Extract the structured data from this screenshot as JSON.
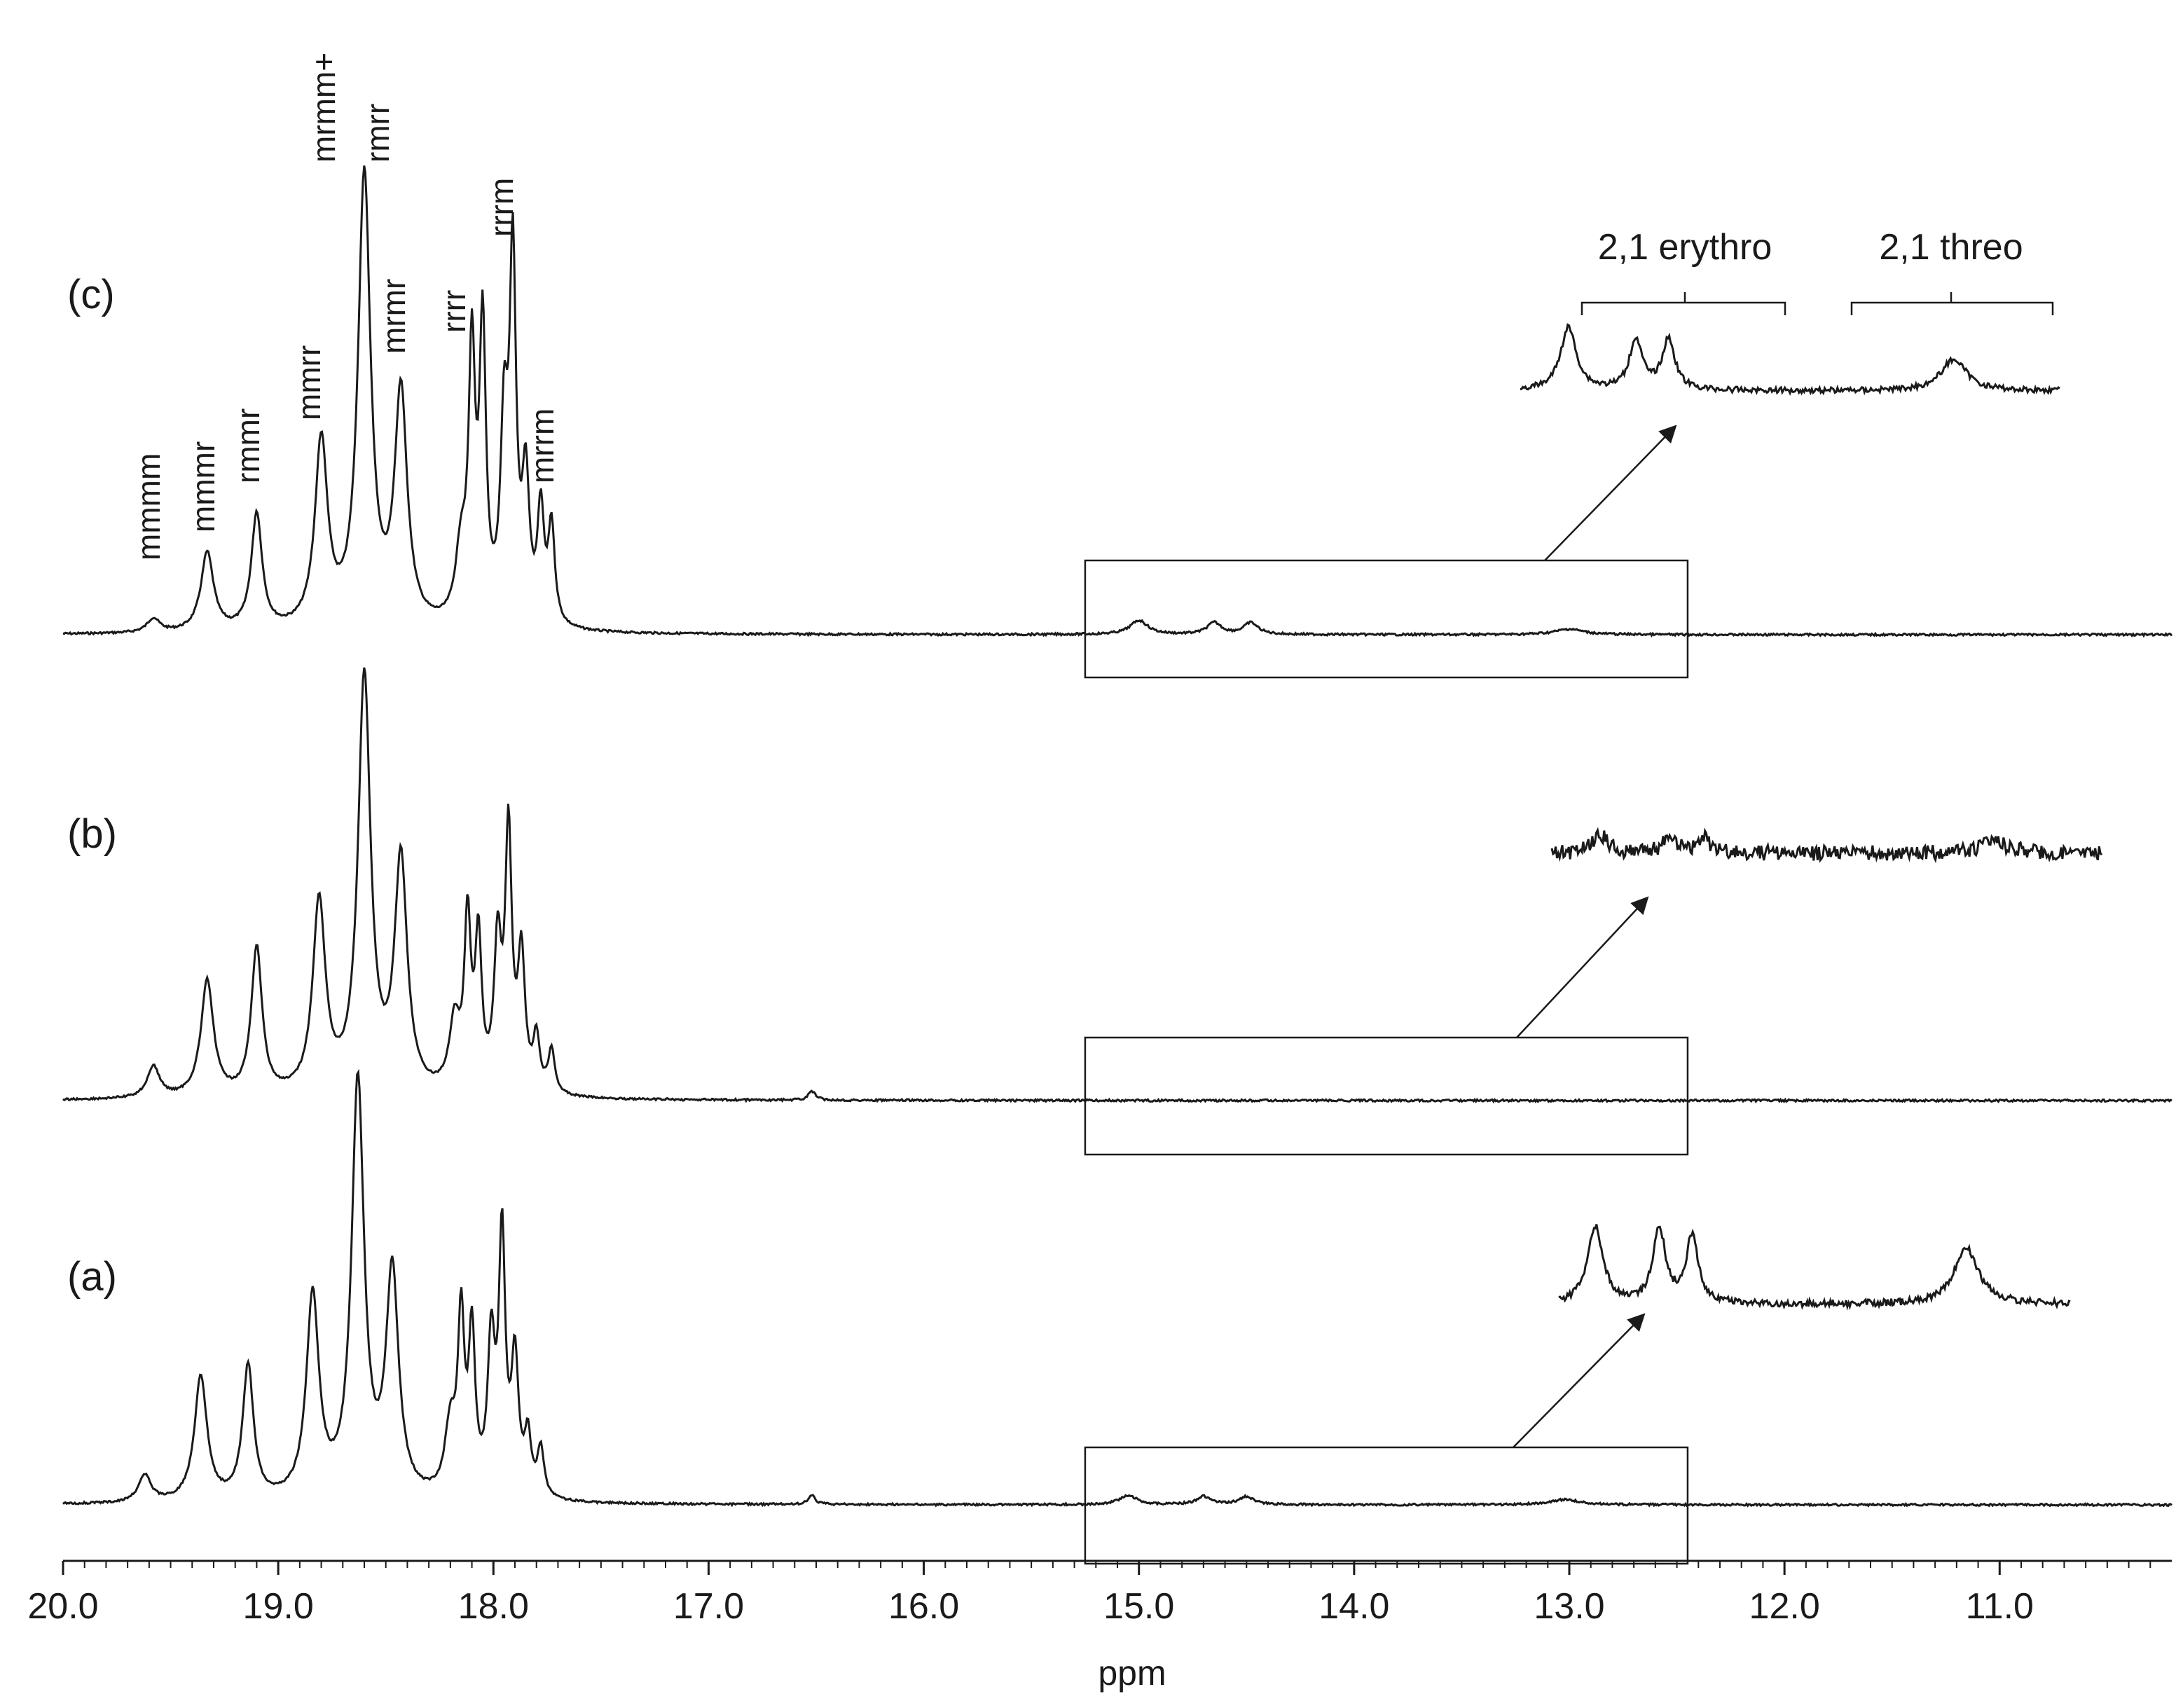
{
  "chart_data": {
    "type": "line",
    "title": "",
    "xlabel": "ppm",
    "ylabel": "",
    "xlim": [
      20.0,
      10.2
    ],
    "x_reversed": true,
    "x_ticks": [
      "20.0",
      "19.0",
      "18.0",
      "17.0",
      "16.0",
      "15.0",
      "14.0",
      "13.0",
      "12.0",
      "11.0"
    ],
    "grid": false,
    "legend": "none",
    "line_color": "#1a1a1a",
    "series": [
      {
        "name": "(c)",
        "peaks": [
          {
            "ppm": 19.58,
            "h": 0.03,
            "w": 0.035
          },
          {
            "ppm": 19.33,
            "h": 0.17,
            "w": 0.035
          },
          {
            "ppm": 19.1,
            "h": 0.25,
            "w": 0.03
          },
          {
            "ppm": 18.8,
            "h": 0.4,
            "w": 0.035
          },
          {
            "ppm": 18.6,
            "h": 0.97,
            "w": 0.035
          },
          {
            "ppm": 18.43,
            "h": 0.5,
            "w": 0.035
          },
          {
            "ppm": 18.15,
            "h": 0.15,
            "w": 0.03
          },
          {
            "ppm": 18.1,
            "h": 0.56,
            "w": 0.018
          },
          {
            "ppm": 18.05,
            "h": 0.62,
            "w": 0.018
          },
          {
            "ppm": 17.95,
            "h": 0.4,
            "w": 0.02
          },
          {
            "ppm": 17.91,
            "h": 0.77,
            "w": 0.018
          },
          {
            "ppm": 17.85,
            "h": 0.3,
            "w": 0.02
          },
          {
            "ppm": 17.78,
            "h": 0.24,
            "w": 0.018
          },
          {
            "ppm": 17.73,
            "h": 0.21,
            "w": 0.018
          },
          {
            "ppm": 15.0,
            "h": 0.03,
            "w": 0.05
          },
          {
            "ppm": 14.65,
            "h": 0.025,
            "w": 0.04
          },
          {
            "ppm": 14.48,
            "h": 0.025,
            "w": 0.04
          },
          {
            "ppm": 13.0,
            "h": 0.012,
            "w": 0.08
          }
        ],
        "inset_peaks": [
          {
            "ppm": 15.0,
            "h": 0.3,
            "w": 0.05
          },
          {
            "ppm": 14.65,
            "h": 0.24,
            "w": 0.04
          },
          {
            "ppm": 14.48,
            "h": 0.24,
            "w": 0.04
          },
          {
            "ppm": 13.0,
            "h": 0.15,
            "w": 0.08
          }
        ],
        "pentad_labels": [
          "mmmm",
          "mmmr",
          "rmmr",
          "mmrr",
          "mrmm+",
          "rmrr",
          "mrmr",
          "rrrr",
          "rrrm",
          "mrrm"
        ],
        "region_labels": [
          "2,1 erythro",
          "2,1 threo"
        ]
      },
      {
        "name": "(b)",
        "peaks": [
          {
            "ppm": 19.58,
            "h": 0.07,
            "w": 0.035
          },
          {
            "ppm": 19.33,
            "h": 0.26,
            "w": 0.035
          },
          {
            "ppm": 19.1,
            "h": 0.33,
            "w": 0.03
          },
          {
            "ppm": 18.81,
            "h": 0.43,
            "w": 0.035
          },
          {
            "ppm": 18.6,
            "h": 0.93,
            "w": 0.035
          },
          {
            "ppm": 18.43,
            "h": 0.52,
            "w": 0.035
          },
          {
            "ppm": 18.18,
            "h": 0.15,
            "w": 0.03
          },
          {
            "ppm": 18.12,
            "h": 0.37,
            "w": 0.018
          },
          {
            "ppm": 18.07,
            "h": 0.33,
            "w": 0.018
          },
          {
            "ppm": 17.98,
            "h": 0.32,
            "w": 0.02
          },
          {
            "ppm": 17.93,
            "h": 0.57,
            "w": 0.018
          },
          {
            "ppm": 17.87,
            "h": 0.3,
            "w": 0.02
          },
          {
            "ppm": 17.8,
            "h": 0.12,
            "w": 0.018
          },
          {
            "ppm": 17.73,
            "h": 0.1,
            "w": 0.018
          },
          {
            "ppm": 16.52,
            "h": 0.02,
            "w": 0.02
          }
        ],
        "inset_peaks": [
          {
            "ppm": 15.0,
            "h": 0.08,
            "w": 0.05
          },
          {
            "ppm": 14.65,
            "h": 0.07,
            "w": 0.04
          },
          {
            "ppm": 14.48,
            "h": 0.07,
            "w": 0.04
          },
          {
            "ppm": 13.0,
            "h": 0.06,
            "w": 0.08
          }
        ]
      },
      {
        "name": "(a)",
        "peaks": [
          {
            "ppm": 19.62,
            "h": 0.06,
            "w": 0.035
          },
          {
            "ppm": 19.36,
            "h": 0.28,
            "w": 0.035
          },
          {
            "ppm": 19.14,
            "h": 0.3,
            "w": 0.03
          },
          {
            "ppm": 18.84,
            "h": 0.45,
            "w": 0.035
          },
          {
            "ppm": 18.63,
            "h": 0.93,
            "w": 0.035
          },
          {
            "ppm": 18.47,
            "h": 0.5,
            "w": 0.035
          },
          {
            "ppm": 18.2,
            "h": 0.15,
            "w": 0.03
          },
          {
            "ppm": 18.15,
            "h": 0.38,
            "w": 0.018
          },
          {
            "ppm": 18.1,
            "h": 0.35,
            "w": 0.018
          },
          {
            "ppm": 18.01,
            "h": 0.33,
            "w": 0.02
          },
          {
            "ppm": 17.96,
            "h": 0.57,
            "w": 0.018
          },
          {
            "ppm": 17.9,
            "h": 0.3,
            "w": 0.02
          },
          {
            "ppm": 17.84,
            "h": 0.13,
            "w": 0.018
          },
          {
            "ppm": 17.78,
            "h": 0.11,
            "w": 0.018
          },
          {
            "ppm": 16.52,
            "h": 0.02,
            "w": 0.02
          },
          {
            "ppm": 15.05,
            "h": 0.02,
            "w": 0.05
          },
          {
            "ppm": 14.7,
            "h": 0.018,
            "w": 0.04
          },
          {
            "ppm": 14.5,
            "h": 0.018,
            "w": 0.04
          },
          {
            "ppm": 13.02,
            "h": 0.012,
            "w": 0.08
          }
        ],
        "inset_peaks": [
          {
            "ppm": 15.05,
            "h": 0.37,
            "w": 0.05
          },
          {
            "ppm": 14.7,
            "h": 0.36,
            "w": 0.04
          },
          {
            "ppm": 14.52,
            "h": 0.32,
            "w": 0.04
          },
          {
            "ppm": 13.02,
            "h": 0.27,
            "w": 0.08
          }
        ]
      }
    ],
    "inset_region": [
      15.25,
      12.45
    ]
  }
}
